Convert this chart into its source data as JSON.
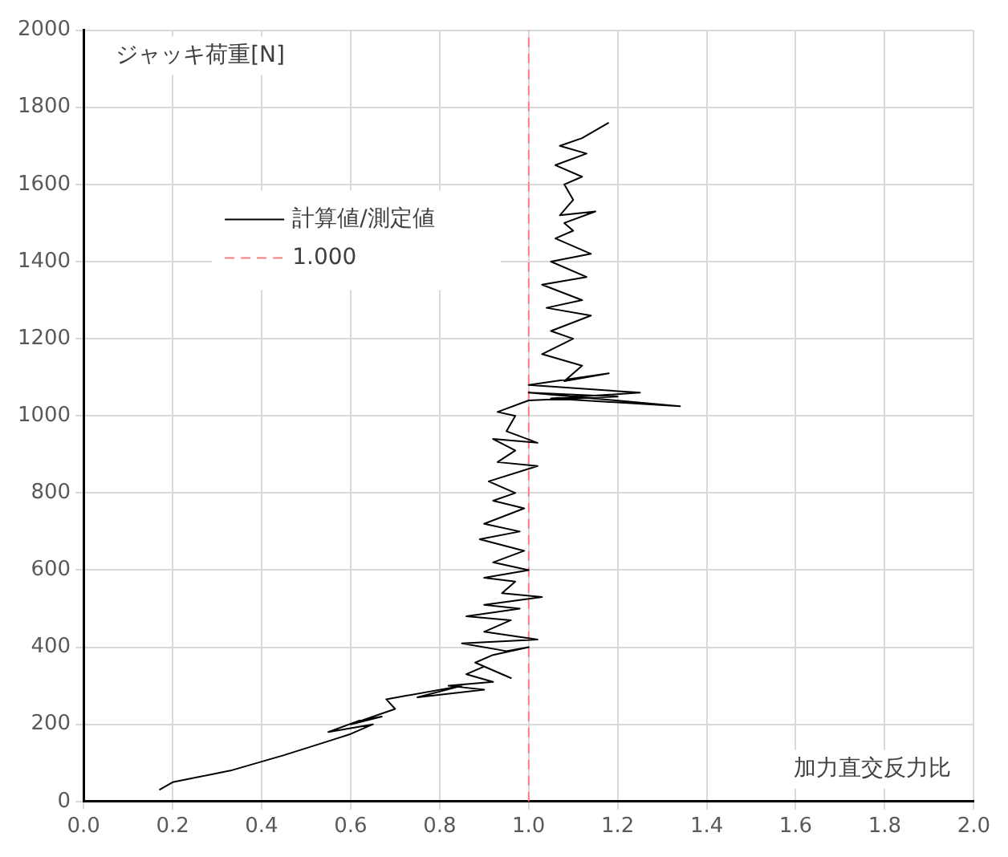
{
  "chart_data": {
    "type": "line",
    "ylabel": "ジャッキ荷重[N]",
    "xlabel": "加力直交反力比",
    "xlim": [
      0,
      2
    ],
    "ylim": [
      0,
      2000
    ],
    "xticks": [
      {
        "value": 0,
        "label": "0.0"
      },
      {
        "value": 0.2,
        "label": "0.2"
      },
      {
        "value": 0.4,
        "label": "0.4"
      },
      {
        "value": 0.6,
        "label": "0.6"
      },
      {
        "value": 0.8,
        "label": "0.8"
      },
      {
        "value": 1,
        "label": "1.0"
      },
      {
        "value": 1.2,
        "label": "1.2"
      },
      {
        "value": 1.4,
        "label": "1.4"
      },
      {
        "value": 1.6,
        "label": "1.6"
      },
      {
        "value": 1.8,
        "label": "1.8"
      },
      {
        "value": 2,
        "label": "2.0"
      }
    ],
    "yticks": [
      0,
      200,
      400,
      600,
      800,
      1000,
      1200,
      1400,
      1600,
      1800,
      2000
    ],
    "grid": true,
    "legend": "top left",
    "marker": "none",
    "series": [
      {
        "name": "計算値/測定値",
        "color": "#000000",
        "line_style": "solid",
        "x": [
          0.17,
          0.2,
          0.33,
          0.45,
          0.56,
          0.6,
          0.65,
          0.55,
          0.62,
          0.67,
          0.6,
          0.7,
          0.68,
          0.85,
          0.75,
          0.9,
          0.82,
          0.92,
          0.86,
          0.9,
          0.96,
          0.88,
          0.92,
          1.0,
          0.95,
          0.85,
          1.02,
          0.9,
          0.96,
          0.86,
          0.98,
          0.9,
          1.03,
          0.94,
          0.97,
          0.9,
          1.0,
          0.92,
          0.99,
          0.89,
          0.98,
          0.9,
          0.99,
          0.92,
          0.97,
          0.91,
          1.02,
          0.93,
          0.97,
          0.92,
          1.02,
          0.95,
          0.97,
          0.93,
          1.0,
          1.2,
          1.0,
          1.34,
          1.05,
          1.25,
          1.0,
          1.18,
          1.08,
          1.12,
          1.03,
          1.1,
          1.05,
          1.14,
          1.04,
          1.12,
          1.03,
          1.13,
          1.05,
          1.14,
          1.06,
          1.1,
          1.08,
          1.15,
          1.07,
          1.1,
          1.08,
          1.12,
          1.06,
          1.13,
          1.07,
          1.12,
          1.18
        ],
        "values": [
          30,
          50,
          80,
          120,
          160,
          175,
          200,
          180,
          210,
          220,
          200,
          240,
          265,
          300,
          270,
          290,
          300,
          310,
          330,
          350,
          320,
          360,
          380,
          400,
          390,
          410,
          420,
          440,
          470,
          480,
          500,
          510,
          530,
          540,
          570,
          580,
          600,
          620,
          650,
          680,
          700,
          720,
          760,
          780,
          800,
          830,
          870,
          880,
          910,
          940,
          930,
          960,
          1000,
          1010,
          1040,
          1050,
          1060,
          1025,
          1045,
          1060,
          1080,
          1110,
          1090,
          1130,
          1160,
          1200,
          1220,
          1260,
          1280,
          1300,
          1340,
          1360,
          1400,
          1420,
          1460,
          1480,
          1500,
          1530,
          1520,
          1560,
          1600,
          1620,
          1650,
          1680,
          1700,
          1720,
          1760
        ]
      },
      {
        "name": "1.000",
        "type": "line",
        "color": "#ff7c80",
        "line_style": "dashed",
        "x": [
          1,
          1
        ],
        "values": [
          0,
          2000
        ]
      }
    ]
  }
}
